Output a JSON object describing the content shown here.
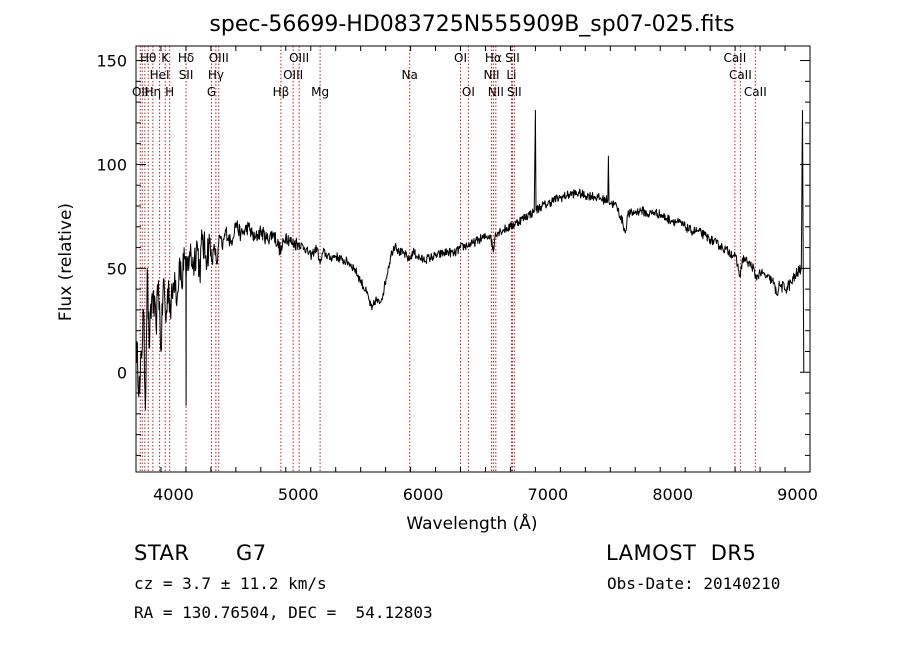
{
  "chart_data": {
    "type": "line",
    "title": "spec-56699-HD083725N555909B_sp07-025.fits",
    "xlabel": "Wavelength (Å)",
    "ylabel": "Flux (relative)",
    "xlim": [
      3700,
      9100
    ],
    "ylim": [
      -48,
      157
    ],
    "xticks": [
      4000,
      5000,
      6000,
      7000,
      8000,
      9000
    ],
    "yticks": [
      0,
      50,
      100,
      150
    ],
    "grid": false,
    "series": [
      {
        "points": [
          [
            3700,
            15
          ],
          [
            3730,
            -10
          ],
          [
            3760,
            30
          ],
          [
            3775,
            -18
          ],
          [
            3790,
            50
          ],
          [
            3805,
            12
          ],
          [
            3830,
            38
          ],
          [
            3860,
            22
          ],
          [
            3880,
            44
          ],
          [
            3900,
            10
          ],
          [
            3920,
            45
          ],
          [
            3940,
            24
          ],
          [
            3960,
            44
          ],
          [
            3975,
            30
          ],
          [
            3990,
            36
          ],
          [
            4010,
            48
          ],
          [
            4030,
            36
          ],
          [
            4050,
            55
          ],
          [
            4070,
            40
          ],
          [
            4085,
            60
          ],
          [
            4100,
            45
          ],
          [
            4101,
            -16
          ],
          [
            4102,
            45
          ],
          [
            4130,
            58
          ],
          [
            4160,
            52
          ],
          [
            4190,
            62
          ],
          [
            4210,
            48
          ],
          [
            4230,
            64
          ],
          [
            4260,
            56
          ],
          [
            4290,
            62
          ],
          [
            4310,
            54
          ],
          [
            4330,
            60
          ],
          [
            4350,
            52
          ],
          [
            4370,
            66
          ],
          [
            4390,
            60
          ],
          [
            4420,
            68
          ],
          [
            4460,
            62
          ],
          [
            4500,
            72
          ],
          [
            4540,
            66
          ],
          [
            4600,
            70
          ],
          [
            4650,
            64
          ],
          [
            4700,
            68
          ],
          [
            4750,
            64
          ],
          [
            4800,
            67
          ],
          [
            4861,
            58
          ],
          [
            4900,
            66
          ],
          [
            4950,
            62
          ],
          [
            5000,
            62
          ],
          [
            5050,
            60
          ],
          [
            5100,
            56
          ],
          [
            5150,
            60
          ],
          [
            5175,
            52
          ],
          [
            5200,
            58
          ],
          [
            5250,
            55
          ],
          [
            5300,
            56
          ],
          [
            5350,
            54
          ],
          [
            5400,
            53
          ],
          [
            5450,
            50
          ],
          [
            5500,
            44
          ],
          [
            5550,
            38
          ],
          [
            5590,
            30
          ],
          [
            5620,
            35
          ],
          [
            5650,
            33
          ],
          [
            5680,
            38
          ],
          [
            5720,
            50
          ],
          [
            5750,
            58
          ],
          [
            5780,
            62
          ],
          [
            5800,
            58
          ],
          [
            5850,
            57
          ],
          [
            5890,
            54
          ],
          [
            5920,
            58
          ],
          [
            5950,
            56
          ],
          [
            6000,
            54
          ],
          [
            6050,
            55
          ],
          [
            6100,
            56
          ],
          [
            6150,
            57
          ],
          [
            6200,
            58
          ],
          [
            6250,
            57
          ],
          [
            6300,
            60
          ],
          [
            6350,
            61
          ],
          [
            6400,
            62
          ],
          [
            6450,
            64
          ],
          [
            6500,
            65
          ],
          [
            6540,
            66
          ],
          [
            6563,
            58
          ],
          [
            6580,
            67
          ],
          [
            6620,
            68
          ],
          [
            6660,
            69
          ],
          [
            6700,
            70
          ],
          [
            6750,
            72
          ],
          [
            6800,
            74
          ],
          [
            6850,
            76
          ],
          [
            6890,
            77
          ],
          [
            6900,
            126
          ],
          [
            6905,
            78
          ],
          [
            6950,
            80
          ],
          [
            7000,
            81
          ],
          [
            7050,
            83
          ],
          [
            7100,
            84
          ],
          [
            7150,
            85
          ],
          [
            7200,
            86
          ],
          [
            7250,
            86
          ],
          [
            7300,
            85
          ],
          [
            7350,
            85
          ],
          [
            7400,
            84
          ],
          [
            7450,
            83
          ],
          [
            7480,
            83
          ],
          [
            7485,
            104
          ],
          [
            7490,
            82
          ],
          [
            7550,
            80
          ],
          [
            7600,
            72
          ],
          [
            7620,
            67
          ],
          [
            7640,
            76
          ],
          [
            7700,
            77
          ],
          [
            7750,
            78
          ],
          [
            7800,
            76
          ],
          [
            7850,
            77
          ],
          [
            7900,
            76
          ],
          [
            7950,
            74
          ],
          [
            8000,
            73
          ],
          [
            8050,
            72
          ],
          [
            8100,
            70
          ],
          [
            8150,
            68
          ],
          [
            8200,
            68
          ],
          [
            8250,
            66
          ],
          [
            8300,
            64
          ],
          [
            8350,
            62
          ],
          [
            8400,
            60
          ],
          [
            8450,
            58
          ],
          [
            8500,
            56
          ],
          [
            8542,
            46
          ],
          [
            8560,
            55
          ],
          [
            8600,
            53
          ],
          [
            8650,
            50
          ],
          [
            8662,
            45
          ],
          [
            8700,
            48
          ],
          [
            8750,
            46
          ],
          [
            8800,
            44
          ],
          [
            8830,
            38
          ],
          [
            8860,
            42
          ],
          [
            8900,
            40
          ],
          [
            8950,
            43
          ],
          [
            9000,
            48
          ],
          [
            9030,
            50
          ],
          [
            9040,
            126
          ],
          [
            9050,
            0
          ]
        ]
      }
    ],
    "lines": [
      {
        "wl": 3734,
        "rows": [
          {
            "r": 2,
            "t": "OII"
          }
        ]
      },
      {
        "wl": 3750,
        "rows": []
      },
      {
        "wl": 3771,
        "rows": []
      },
      {
        "wl": 3798,
        "rows": [
          {
            "r": 0,
            "t": "Hθ"
          }
        ]
      },
      {
        "wl": 3835,
        "rows": [
          {
            "r": 2,
            "t": "Hη"
          }
        ]
      },
      {
        "wl": 3889,
        "rows": [
          {
            "r": 1,
            "t": "HeI"
          }
        ]
      },
      {
        "wl": 3934,
        "rows": [
          {
            "r": 0,
            "t": "K"
          }
        ]
      },
      {
        "wl": 3970,
        "rows": [
          {
            "r": 2,
            "t": "H"
          }
        ]
      },
      {
        "wl": 4101,
        "rows": [
          {
            "r": 0,
            "t": "Hδ"
          },
          {
            "r": 1,
            "t": "SII"
          }
        ]
      },
      {
        "wl": 4305,
        "rows": [
          {
            "r": 2,
            "t": "G"
          }
        ]
      },
      {
        "wl": 4340,
        "rows": [
          {
            "r": 1,
            "t": "Hγ"
          }
        ]
      },
      {
        "wl": 4363,
        "rows": [
          {
            "r": 0,
            "t": "OIII"
          }
        ]
      },
      {
        "wl": 4861,
        "rows": [
          {
            "r": 2,
            "t": "Hβ"
          }
        ]
      },
      {
        "wl": 4959,
        "rows": [
          {
            "r": 1,
            "t": "OIII"
          }
        ]
      },
      {
        "wl": 5007,
        "rows": [
          {
            "r": 0,
            "t": "OIII"
          }
        ]
      },
      {
        "wl": 5175,
        "rows": [
          {
            "r": 2,
            "t": "Mg"
          }
        ]
      },
      {
        "wl": 5893,
        "rows": [
          {
            "r": 1,
            "t": "Na"
          }
        ]
      },
      {
        "wl": 6300,
        "rows": [
          {
            "r": 0,
            "t": "OI"
          }
        ]
      },
      {
        "wl": 6363,
        "rows": [
          {
            "r": 2,
            "t": "OI"
          }
        ]
      },
      {
        "wl": 6548,
        "rows": [
          {
            "r": 1,
            "t": "NII"
          }
        ]
      },
      {
        "wl": 6563,
        "rows": [
          {
            "r": 0,
            "t": "Hα"
          }
        ]
      },
      {
        "wl": 6583,
        "rows": [
          {
            "r": 2,
            "t": "NII"
          }
        ]
      },
      {
        "wl": 6708,
        "rows": [
          {
            "r": 1,
            "t": "Li"
          }
        ]
      },
      {
        "wl": 6716,
        "rows": [
          {
            "r": 0,
            "t": "SII"
          }
        ]
      },
      {
        "wl": 6731,
        "rows": [
          {
            "r": 2,
            "t": "SII"
          }
        ]
      },
      {
        "wl": 8498,
        "rows": [
          {
            "r": 0,
            "t": "CaII"
          }
        ]
      },
      {
        "wl": 8542,
        "rows": [
          {
            "r": 1,
            "t": "CaII"
          }
        ]
      },
      {
        "wl": 8662,
        "rows": [
          {
            "r": 2,
            "t": "CaII"
          }
        ]
      }
    ],
    "line_color": "#b22222",
    "spectrum_color": "#000000"
  },
  "info": {
    "object_class": "STAR",
    "subclass": "G7",
    "survey": "LAMOST  DR5",
    "redshift_text": "cz = 3.7 ± 11.2 km/s",
    "obs_date": "Obs-Date: 20140210",
    "coords": "RA = 130.76504, DEC =  54.12803"
  }
}
